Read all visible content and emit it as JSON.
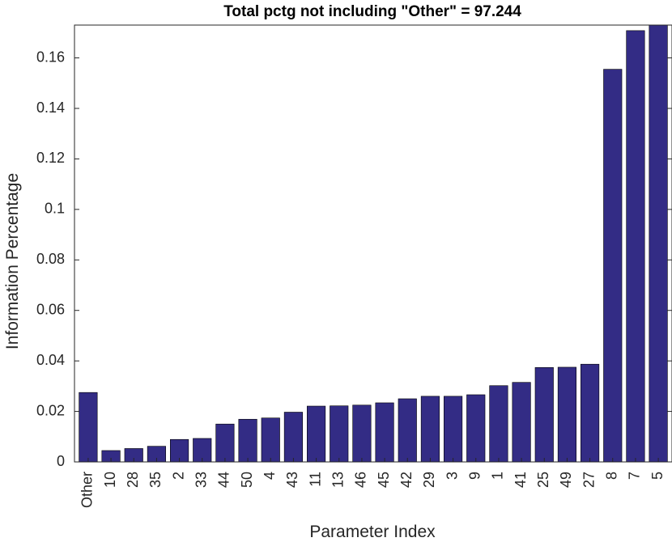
{
  "chart_data": {
    "type": "bar",
    "title": "Total pctg not including \"Other\" = 97.244",
    "xlabel": "Parameter Index",
    "ylabel": "Information Percentage",
    "categories": [
      "Other",
      "10",
      "28",
      "35",
      "2",
      "33",
      "44",
      "50",
      "4",
      "43",
      "11",
      "13",
      "46",
      "45",
      "42",
      "29",
      "3",
      "9",
      "1",
      "41",
      "25",
      "49",
      "27",
      "8",
      "7",
      "5"
    ],
    "values": [
      0.0275,
      0.0045,
      0.0053,
      0.0062,
      0.0089,
      0.0093,
      0.015,
      0.0169,
      0.0174,
      0.0197,
      0.0221,
      0.0222,
      0.0225,
      0.0234,
      0.025,
      0.026,
      0.026,
      0.0266,
      0.0302,
      0.0315,
      0.0374,
      0.0375,
      0.0387,
      0.1555,
      0.1708,
      0.173
    ],
    "ylim": [
      0,
      0.173
    ],
    "yticks": [
      0,
      0.02,
      0.04,
      0.06,
      0.08,
      0.1,
      0.12,
      0.14,
      0.16
    ],
    "ytick_labels": [
      "0",
      "0.02",
      "0.04",
      "0.06",
      "0.08",
      "0.1",
      "0.12",
      "0.14",
      "0.16"
    ],
    "bar_color": "#332c85",
    "grid": false
  }
}
